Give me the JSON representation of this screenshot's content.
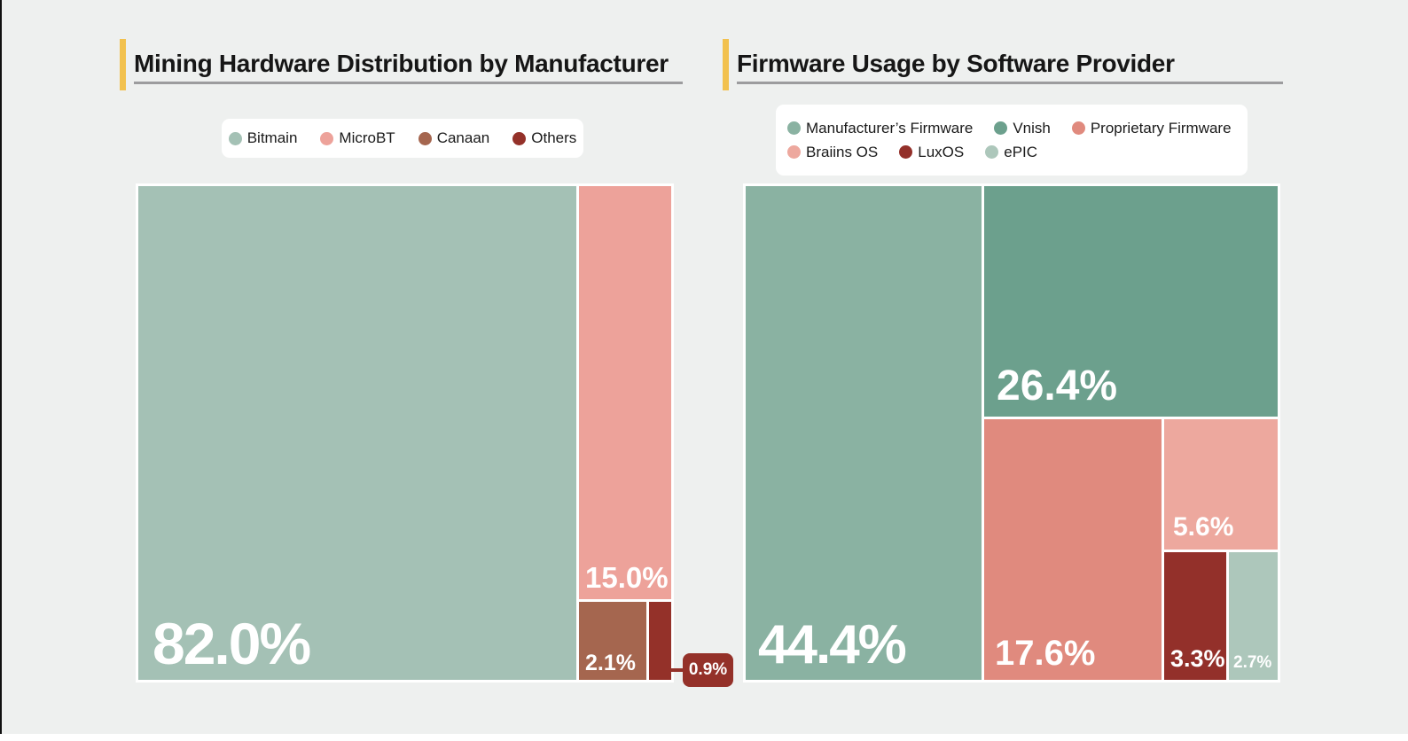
{
  "page": {
    "background": "#eef0ef",
    "accent_color": "#f2c14e"
  },
  "chart_data": [
    {
      "type": "treemap",
      "title": "Mining Hardware Distribution by Manufacturer",
      "legend_position": "top-center",
      "legend": [
        {
          "label": "Bitmain",
          "color": "#a4c1b5"
        },
        {
          "label": "MicroBT",
          "color": "#eda29a"
        },
        {
          "label": "Canaan",
          "color": "#a5664f"
        },
        {
          "label": "Others",
          "color": "#943129"
        }
      ],
      "items": [
        {
          "label": "Bitmain",
          "value": 82.0,
          "pct_label": "82.0%",
          "color": "#a4c1b5"
        },
        {
          "label": "MicroBT",
          "value": 15.0,
          "pct_label": "15.0%",
          "color": "#eda29a"
        },
        {
          "label": "Canaan",
          "value": 2.1,
          "pct_label": "2.1%",
          "color": "#a5664f"
        },
        {
          "label": "Others",
          "value": 0.9,
          "pct_label": "0.9%",
          "color": "#943129"
        }
      ]
    },
    {
      "type": "treemap",
      "title": "Firmware Usage by Software Provider",
      "legend_position": "top-center",
      "legend": [
        {
          "label": "Manufacturer’s Firmware",
          "color": "#8ab2a2"
        },
        {
          "label": "Vnish",
          "color": "#6ca08d"
        },
        {
          "label": "Proprietary Firmware",
          "color": "#e08a7e"
        },
        {
          "label": "Braiins OS",
          "color": "#eda89e"
        },
        {
          "label": "LuxOS",
          "color": "#93302a"
        },
        {
          "label": "ePIC",
          "color": "#adc7bb"
        }
      ],
      "items": [
        {
          "label": "Manufacturer’s Firmware",
          "value": 44.4,
          "pct_label": "44.4%",
          "color": "#8ab2a2"
        },
        {
          "label": "Vnish",
          "value": 26.4,
          "pct_label": "26.4%",
          "color": "#6ca08d"
        },
        {
          "label": "Proprietary Firmware",
          "value": 17.6,
          "pct_label": "17.6%",
          "color": "#e08a7e"
        },
        {
          "label": "Braiins OS",
          "value": 5.6,
          "pct_label": "5.6%",
          "color": "#eda89e"
        },
        {
          "label": "LuxOS",
          "value": 3.3,
          "pct_label": "3.3%",
          "color": "#93302a"
        },
        {
          "label": "ePIC",
          "value": 2.7,
          "pct_label": "2.7%",
          "color": "#adc7bb"
        }
      ]
    }
  ]
}
